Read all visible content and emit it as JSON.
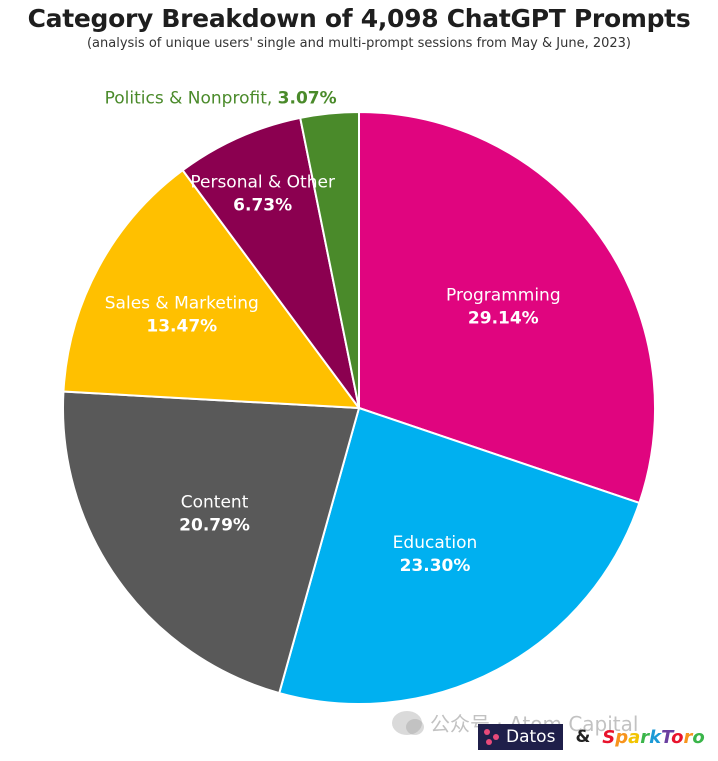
{
  "title": "Category Breakdown of 4,098 ChatGPT Prompts",
  "subtitle": "(analysis of unique users' single and multi-prompt sessions from May & June, 2023)",
  "watermark": "公众号 · Atom Capital",
  "logos": {
    "datos": "Datos",
    "ampersand": "&",
    "sparktoro": "SparkToro"
  },
  "chart_data": {
    "type": "pie",
    "title": "Category Breakdown of 4,098 ChatGPT Prompts",
    "subtitle": "(analysis of unique users' single and multi-prompt sessions from May & June, 2023)",
    "slices": [
      {
        "label": "Programming",
        "value": 29.14,
        "pct_text": "29.14%",
        "color": "#E0057F"
      },
      {
        "label": "Education",
        "value": 23.3,
        "pct_text": "23.30%",
        "color": "#00B0F0"
      },
      {
        "label": "Content",
        "value": 20.79,
        "pct_text": "20.79%",
        "color": "#595959"
      },
      {
        "label": "Sales & Marketing",
        "value": 13.47,
        "pct_text": "13.47%",
        "color": "#FFC000"
      },
      {
        "label": "Personal & Other",
        "value": 6.73,
        "pct_text": "6.73%",
        "color": "#8B0050"
      },
      {
        "label": "Politics & Nonprofit",
        "value": 3.07,
        "pct_text": "3.07%",
        "color": "#4A8A2A"
      }
    ],
    "start_angle": "12 o'clock",
    "direction": "clockwise",
    "external_label_color": "#4A8A2A"
  }
}
